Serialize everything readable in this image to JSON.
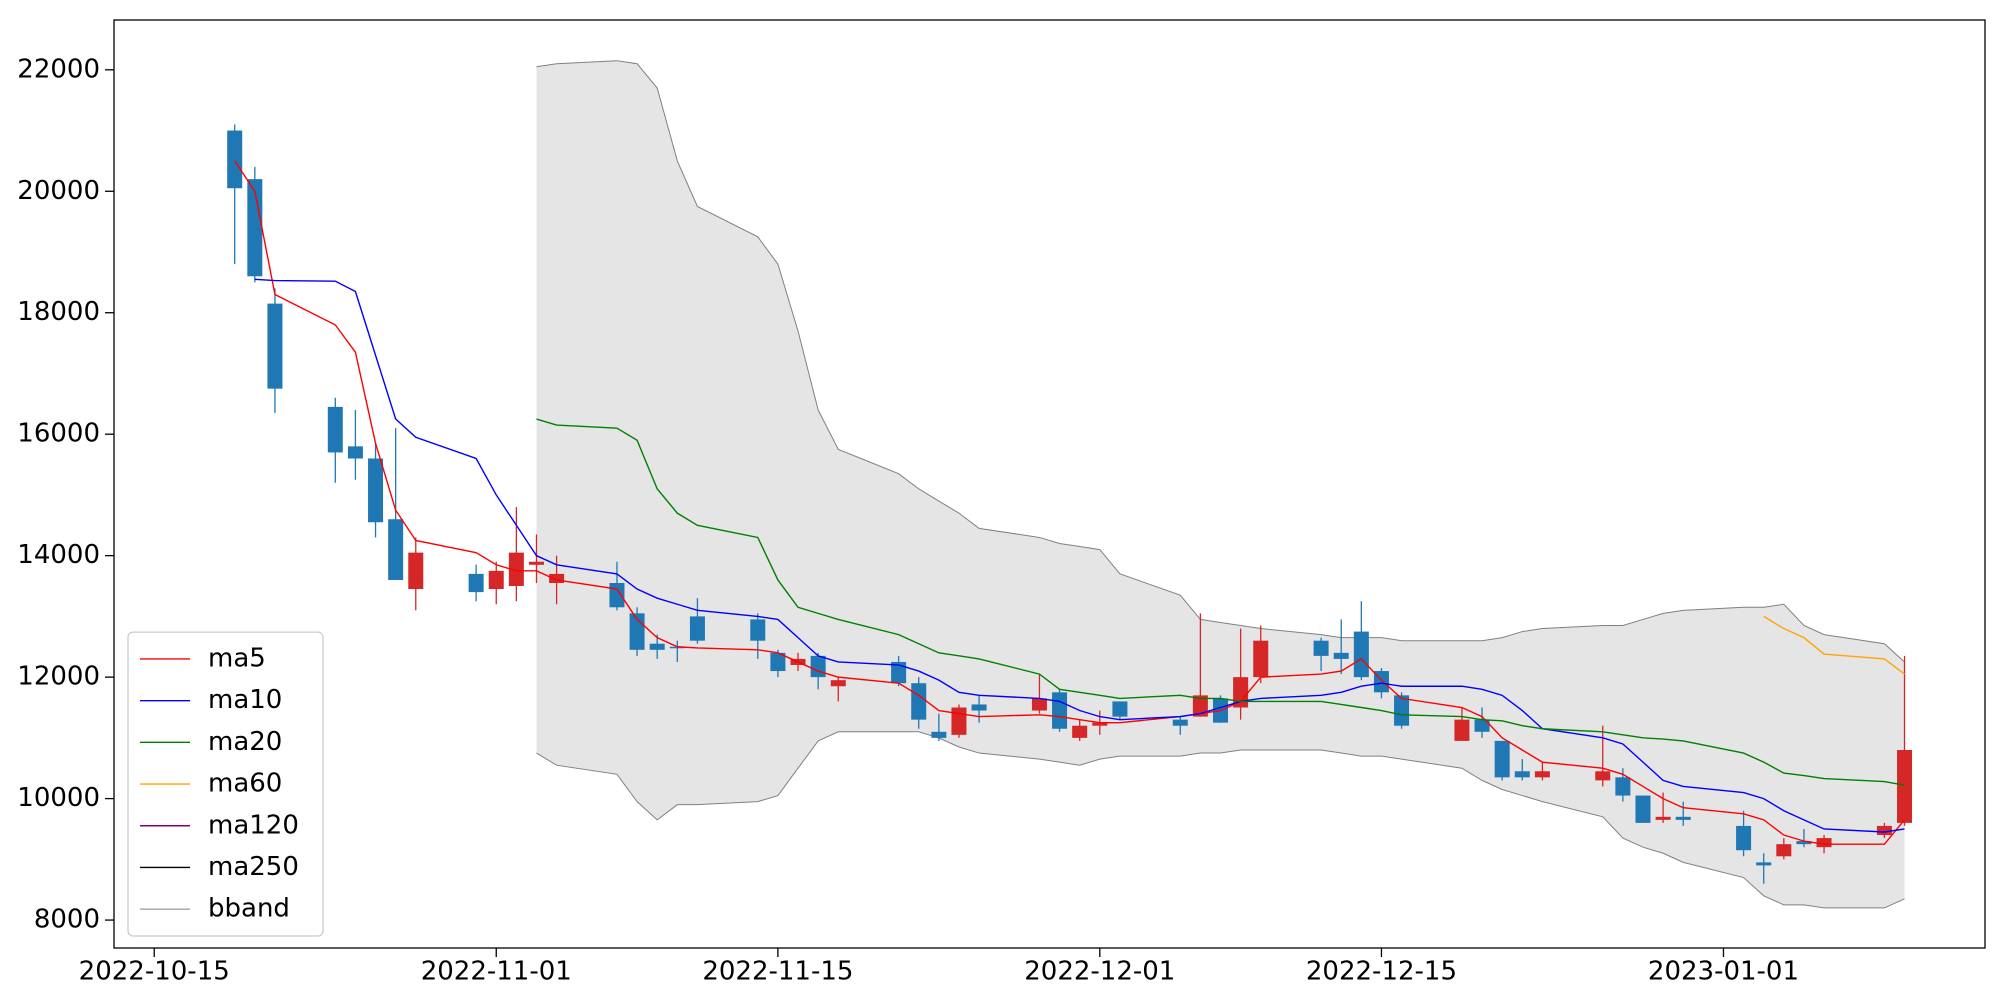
{
  "chart_data": {
    "type": "candlestick",
    "x": [
      "2022-10-19",
      "2022-10-20",
      "2022-10-21",
      "2022-10-24",
      "2022-10-25",
      "2022-10-26",
      "2022-10-27",
      "2022-10-28",
      "2022-10-31",
      "2022-11-01",
      "2022-11-02",
      "2022-11-03",
      "2022-11-04",
      "2022-11-07",
      "2022-11-08",
      "2022-11-09",
      "2022-11-10",
      "2022-11-11",
      "2022-11-14",
      "2022-11-15",
      "2022-11-16",
      "2022-11-17",
      "2022-11-18",
      "2022-11-21",
      "2022-11-22",
      "2022-11-23",
      "2022-11-24",
      "2022-11-25",
      "2022-11-28",
      "2022-11-29",
      "2022-11-30",
      "2022-12-01",
      "2022-12-02",
      "2022-12-05",
      "2022-12-06",
      "2022-12-07",
      "2022-12-08",
      "2022-12-09",
      "2022-12-12",
      "2022-12-13",
      "2022-12-14",
      "2022-12-15",
      "2022-12-16",
      "2022-12-19",
      "2022-12-20",
      "2022-12-21",
      "2022-12-22",
      "2022-12-23",
      "2022-12-26",
      "2022-12-27",
      "2022-12-28",
      "2022-12-29",
      "2022-12-30",
      "2023-01-02",
      "2023-01-03",
      "2023-01-04",
      "2023-01-05",
      "2023-01-06",
      "2023-01-09",
      "2023-01-10"
    ],
    "open": [
      21000,
      20200,
      18150,
      16450,
      15800,
      15600,
      14600,
      13450,
      13700,
      13450,
      13500,
      13850,
      13550,
      13550,
      13050,
      12550,
      12500,
      13000,
      12950,
      12400,
      12200,
      12350,
      11850,
      12250,
      11900,
      11100,
      11050,
      11550,
      11450,
      11750,
      11000,
      11200,
      11600,
      11300,
      11350,
      11650,
      11500,
      12000,
      12600,
      12400,
      12750,
      12100,
      11700,
      10950,
      11300,
      10950,
      10450,
      10350,
      10300,
      10350,
      10050,
      9650,
      9700,
      9550,
      8950,
      9050,
      9300,
      9200,
      9400,
      9600
    ],
    "high": [
      21100,
      20400,
      18400,
      16600,
      16400,
      15850,
      16100,
      14300,
      13850,
      13900,
      14800,
      14350,
      14000,
      13900,
      13150,
      12700,
      12600,
      13300,
      13050,
      12450,
      12400,
      12400,
      12000,
      12350,
      12000,
      11400,
      11550,
      11700,
      12050,
      11800,
      11300,
      11450,
      11600,
      11350,
      13050,
      11700,
      12800,
      12850,
      12650,
      12950,
      13250,
      12150,
      11750,
      11500,
      11500,
      10950,
      10650,
      10600,
      11200,
      10500,
      10050,
      10100,
      9950,
      9800,
      9100,
      9350,
      9500,
      9400,
      9600,
      12350
    ],
    "low": [
      18800,
      18500,
      16350,
      15200,
      15250,
      14300,
      13600,
      13100,
      13250,
      13200,
      13250,
      13550,
      13200,
      13100,
      12350,
      12300,
      12250,
      12550,
      12300,
      12000,
      12100,
      11800,
      11600,
      11850,
      11150,
      10950,
      11000,
      11250,
      11400,
      11100,
      10950,
      11050,
      11300,
      11050,
      11350,
      11250,
      11300,
      11900,
      12100,
      12050,
      11950,
      11650,
      11150,
      10950,
      11000,
      10300,
      10300,
      10300,
      10200,
      9950,
      9600,
      9600,
      9550,
      9050,
      8600,
      9000,
      9200,
      9100,
      9350,
      9550
    ],
    "close": [
      20050,
      18600,
      16750,
      15700,
      15600,
      14550,
      13600,
      14050,
      13400,
      13750,
      14050,
      13900,
      13700,
      13150,
      12450,
      12450,
      12480,
      12600,
      12600,
      12100,
      12300,
      12000,
      11950,
      11900,
      11300,
      11000,
      11500,
      11450,
      11650,
      11150,
      11200,
      11250,
      11350,
      11200,
      11700,
      11250,
      12000,
      12600,
      12350,
      12300,
      12000,
      11750,
      11200,
      11300,
      11100,
      10350,
      10350,
      10450,
      10450,
      10050,
      9600,
      9700,
      9650,
      9150,
      8900,
      9250,
      9250,
      9350,
      9550,
      10800
    ],
    "up_color": "#d62728",
    "down_color": "#1f77b4",
    "series": [
      {
        "name": "ma5",
        "color": "red",
        "values": [
          20500,
          20000,
          18300,
          17800,
          17350,
          15850,
          14750,
          14250,
          14050,
          13850,
          13750,
          13750,
          13600,
          13450,
          12950,
          12650,
          12500,
          12480,
          12450,
          12400,
          12250,
          12100,
          12000,
          11900,
          11700,
          11450,
          11400,
          11350,
          11380,
          11350,
          11300,
          11250,
          11250,
          11350,
          11400,
          11450,
          11600,
          12000,
          12050,
          12100,
          12300,
          11950,
          11650,
          11500,
          11350,
          11000,
          10800,
          10600,
          10500,
          10400,
          10200,
          10000,
          9850,
          9750,
          9650,
          9400,
          9300,
          9250,
          9250,
          9650
        ]
      },
      {
        "name": "ma10",
        "color": "blue",
        "values": [
          null,
          18550,
          18530,
          18520,
          18350,
          17300,
          16250,
          15950,
          15600,
          15000,
          14500,
          14000,
          13850,
          13700,
          13450,
          13300,
          13200,
          13100,
          13000,
          12950,
          12650,
          12350,
          12250,
          12200,
          12100,
          11950,
          11750,
          11700,
          11650,
          11600,
          11450,
          11350,
          11300,
          11350,
          11400,
          11500,
          11600,
          11650,
          11700,
          11750,
          11850,
          11900,
          11850,
          11850,
          11800,
          11700,
          11450,
          11150,
          11000,
          10900,
          10600,
          10300,
          10200,
          10100,
          10000,
          9800,
          9650,
          9500,
          9450,
          9500
        ]
      },
      {
        "name": "ma20",
        "color": "green",
        "values": [
          null,
          null,
          null,
          null,
          null,
          null,
          null,
          null,
          null,
          null,
          null,
          16250,
          16150,
          16100,
          15900,
          15100,
          14700,
          14500,
          14300,
          13600,
          13150,
          13050,
          12950,
          12700,
          12550,
          12400,
          12350,
          12300,
          12050,
          11800,
          11750,
          11700,
          11650,
          11700,
          11650,
          11650,
          11600,
          11600,
          11600,
          11550,
          11500,
          11450,
          11380,
          11350,
          11300,
          11280,
          11200,
          11150,
          11100,
          11050,
          11000,
          10980,
          10950,
          10750,
          10600,
          10420,
          10380,
          10330,
          10280,
          10220
        ]
      },
      {
        "name": "ma60",
        "color": "orange",
        "values": [
          null,
          null,
          null,
          null,
          null,
          null,
          null,
          null,
          null,
          null,
          null,
          null,
          null,
          null,
          null,
          null,
          null,
          null,
          null,
          null,
          null,
          null,
          null,
          null,
          null,
          null,
          null,
          null,
          null,
          null,
          null,
          null,
          null,
          null,
          null,
          null,
          null,
          null,
          null,
          null,
          null,
          null,
          null,
          null,
          null,
          null,
          null,
          null,
          null,
          null,
          null,
          null,
          null,
          null,
          13000,
          12800,
          12650,
          12380,
          12300,
          12050
        ]
      },
      {
        "name": "ma120",
        "color": "purple",
        "values": [
          null,
          null,
          null,
          null,
          null,
          null,
          null,
          null,
          null,
          null,
          null,
          null,
          null,
          null,
          null,
          null,
          null,
          null,
          null,
          null,
          null,
          null,
          null,
          null,
          null,
          null,
          null,
          null,
          null,
          null,
          null,
          null,
          null,
          null,
          null,
          null,
          null,
          null,
          null,
          null,
          null,
          null,
          null,
          null,
          null,
          null,
          null,
          null,
          null,
          null,
          null,
          null,
          null,
          null,
          null,
          null,
          null,
          null,
          null,
          null
        ]
      },
      {
        "name": "ma250",
        "color": "black",
        "values": [
          null,
          null,
          null,
          null,
          null,
          null,
          null,
          null,
          null,
          null,
          null,
          null,
          null,
          null,
          null,
          null,
          null,
          null,
          null,
          null,
          null,
          null,
          null,
          null,
          null,
          null,
          null,
          null,
          null,
          null,
          null,
          null,
          null,
          null,
          null,
          null,
          null,
          null,
          null,
          null,
          null,
          null,
          null,
          null,
          null,
          null,
          null,
          null,
          null,
          null,
          null,
          null,
          null,
          null,
          null,
          null,
          null,
          null,
          null,
          null
        ]
      }
    ],
    "bband": {
      "name": "bband",
      "color": "gray",
      "fill": "#e5e5e5",
      "upper": [
        null,
        null,
        null,
        null,
        null,
        null,
        null,
        null,
        null,
        null,
        null,
        22050,
        22100,
        22150,
        22100,
        21700,
        20500,
        19750,
        19250,
        18800,
        17700,
        16400,
        15750,
        15350,
        15100,
        14900,
        14700,
        14450,
        14300,
        14200,
        14150,
        14100,
        13700,
        13350,
        12950,
        12900,
        12850,
        12800,
        12700,
        12650,
        12650,
        12650,
        12600,
        12600,
        12600,
        12650,
        12750,
        12800,
        12850,
        12850,
        12950,
        13050,
        13100,
        13150,
        13150,
        13200,
        12850,
        12700,
        12550,
        12250
      ],
      "lower": [
        null,
        null,
        null,
        null,
        null,
        null,
        null,
        null,
        null,
        null,
        null,
        10750,
        10550,
        10400,
        9950,
        9650,
        9900,
        9900,
        9950,
        10050,
        10500,
        10950,
        11100,
        11100,
        11100,
        11000,
        10850,
        10750,
        10650,
        10600,
        10550,
        10650,
        10700,
        10700,
        10750,
        10750,
        10800,
        10800,
        10800,
        10750,
        10700,
        10700,
        10650,
        10500,
        10300,
        10150,
        10050,
        9950,
        9700,
        9350,
        9200,
        9100,
        8950,
        8700,
        8400,
        8250,
        8250,
        8200,
        8200,
        8350
      ]
    },
    "xlim": [
      "2022-10-13",
      "2023-01-14"
    ],
    "xticks": [
      "2022-10-15",
      "2022-11-01",
      "2022-11-15",
      "2022-12-01",
      "2022-12-15",
      "2023-01-01"
    ],
    "ylim": [
      7540,
      22820
    ],
    "yticks": [
      8000,
      10000,
      12000,
      14000,
      16000,
      18000,
      20000,
      22000
    ],
    "legend": "lower left"
  }
}
